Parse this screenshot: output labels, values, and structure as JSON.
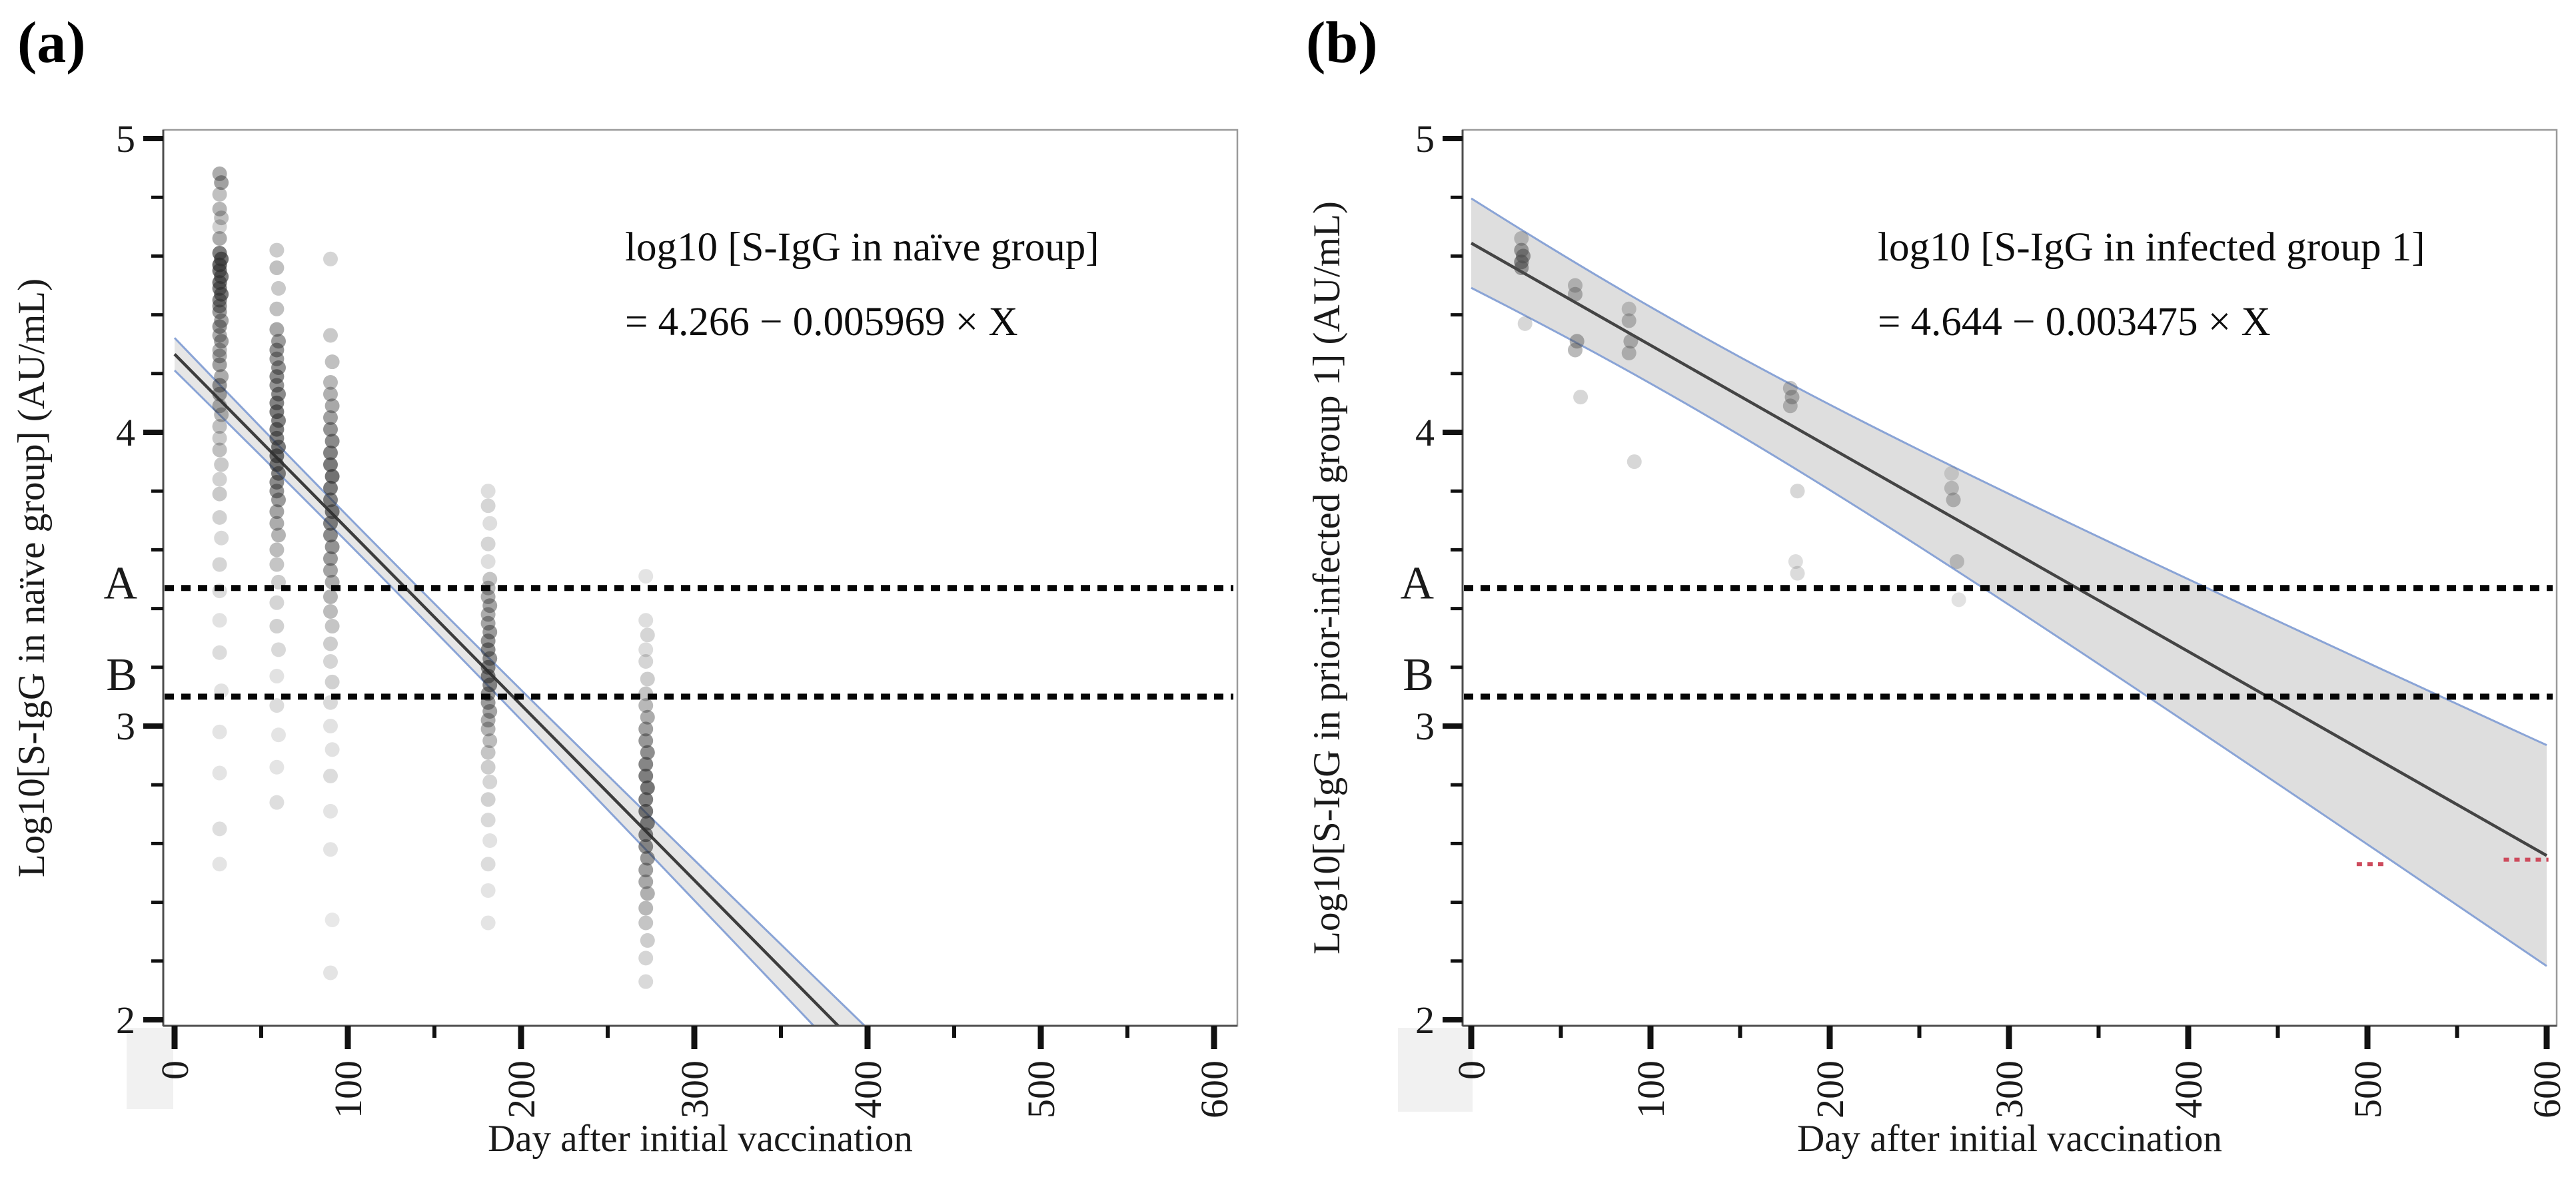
{
  "chart_data": [
    {
      "type": "scatter",
      "panel": "a",
      "panel_label": "(a)",
      "xlabel": "Day after initial vaccination",
      "ylabel": "Log10[S-IgG in naïve group] (AU/mL)",
      "xlim": [
        0,
        600
      ],
      "ylim": [
        2,
        5
      ],
      "x_ticks": [
        0,
        100,
        200,
        300,
        400,
        500,
        600
      ],
      "y_ticks": [
        2,
        3,
        4,
        5
      ],
      "minor_x_step": 50,
      "minor_y_step": 0.2,
      "grid": false,
      "equation": [
        "log10 [S-IgG in naïve group]",
        "= 4.266 − 0.005969 × X"
      ],
      "regression": {
        "intercept": 4.266,
        "slope": -0.005969,
        "x_start": 0,
        "x_end": 420
      },
      "ci_band": {
        "h0": 0.045,
        "k": 0.00028,
        "xm": 115,
        "x_start": 0,
        "x_end": 430
      },
      "thresholds": [
        {
          "label": "A",
          "y": 3.47
        },
        {
          "label": "B",
          "y": 3.1
        }
      ],
      "red_marks": [],
      "colors": {
        "point": "#2f2f2f",
        "line": "#3d3d3d",
        "band_fill": "#d2d2d2",
        "band_edge": "#8aa4d6",
        "threshold": "#050505",
        "red_mark": "#cd4a5c",
        "border": "#9a9a9a",
        "axis": "#4d4d4d",
        "tick": "#111111"
      },
      "band_opacity": 0.55,
      "points": [
        [
          26,
          4.88,
          0.4
        ],
        [
          27,
          4.85,
          0.45
        ],
        [
          26,
          4.81,
          0.3
        ],
        [
          26,
          4.76,
          0.35
        ],
        [
          27,
          4.73,
          0.3
        ],
        [
          26,
          4.7,
          0.22
        ],
        [
          26,
          4.66,
          0.4
        ],
        [
          26,
          4.61,
          0.62
        ],
        [
          27,
          4.59,
          0.68
        ],
        [
          26,
          4.57,
          0.72
        ],
        [
          26,
          4.55,
          0.66
        ],
        [
          27,
          4.53,
          0.62
        ],
        [
          26,
          4.51,
          0.66
        ],
        [
          26,
          4.49,
          0.6
        ],
        [
          27,
          4.47,
          0.64
        ],
        [
          26,
          4.45,
          0.56
        ],
        [
          26,
          4.43,
          0.52
        ],
        [
          26,
          4.41,
          0.48
        ],
        [
          27,
          4.38,
          0.44
        ],
        [
          26,
          4.36,
          0.5
        ],
        [
          26,
          4.33,
          0.4
        ],
        [
          27,
          4.31,
          0.46
        ],
        [
          26,
          4.28,
          0.36
        ],
        [
          26,
          4.26,
          0.42
        ],
        [
          26,
          4.23,
          0.46
        ],
        [
          27,
          4.19,
          0.4
        ],
        [
          26,
          4.16,
          0.5
        ],
        [
          26,
          4.13,
          0.44
        ],
        [
          26,
          4.09,
          0.38
        ],
        [
          27,
          4.06,
          0.34
        ],
        [
          26,
          4.02,
          0.3
        ],
        [
          26,
          3.98,
          0.26
        ],
        [
          26,
          3.94,
          0.3
        ],
        [
          27,
          3.89,
          0.26
        ],
        [
          26,
          3.84,
          0.22
        ],
        [
          26,
          3.79,
          0.26
        ],
        [
          26,
          3.71,
          0.22
        ],
        [
          27,
          3.64,
          0.18
        ],
        [
          26,
          3.55,
          0.2
        ],
        [
          26,
          3.46,
          0.17
        ],
        [
          26,
          3.36,
          0.14
        ],
        [
          26,
          3.25,
          0.17
        ],
        [
          27,
          3.12,
          0.14
        ],
        [
          26,
          2.98,
          0.13
        ],
        [
          26,
          2.84,
          0.13
        ],
        [
          26,
          2.65,
          0.16
        ],
        [
          26,
          2.53,
          0.13
        ],
        [
          59,
          4.62,
          0.25
        ],
        [
          59,
          4.56,
          0.3
        ],
        [
          60,
          4.49,
          0.26
        ],
        [
          59,
          4.42,
          0.3
        ],
        [
          59,
          4.35,
          0.42
        ],
        [
          60,
          4.31,
          0.48
        ],
        [
          59,
          4.28,
          0.52
        ],
        [
          59,
          4.25,
          0.48
        ],
        [
          60,
          4.22,
          0.52
        ],
        [
          59,
          4.19,
          0.56
        ],
        [
          59,
          4.16,
          0.52
        ],
        [
          60,
          4.13,
          0.56
        ],
        [
          59,
          4.1,
          0.6
        ],
        [
          59,
          4.07,
          0.64
        ],
        [
          60,
          4.04,
          0.6
        ],
        [
          59,
          4.01,
          0.64
        ],
        [
          59,
          3.98,
          0.6
        ],
        [
          60,
          3.95,
          0.64
        ],
        [
          59,
          3.92,
          0.68
        ],
        [
          59,
          3.89,
          0.64
        ],
        [
          60,
          3.86,
          0.6
        ],
        [
          59,
          3.83,
          0.56
        ],
        [
          59,
          3.8,
          0.52
        ],
        [
          60,
          3.77,
          0.48
        ],
        [
          59,
          3.73,
          0.44
        ],
        [
          59,
          3.69,
          0.4
        ],
        [
          60,
          3.65,
          0.36
        ],
        [
          59,
          3.6,
          0.32
        ],
        [
          59,
          3.55,
          0.28
        ],
        [
          60,
          3.49,
          0.24
        ],
        [
          59,
          3.42,
          0.2
        ],
        [
          59,
          3.34,
          0.22
        ],
        [
          60,
          3.26,
          0.18
        ],
        [
          59,
          3.17,
          0.14
        ],
        [
          59,
          3.07,
          0.17
        ],
        [
          60,
          2.97,
          0.13
        ],
        [
          59,
          2.86,
          0.13
        ],
        [
          59,
          2.74,
          0.16
        ],
        [
          90,
          4.59,
          0.2
        ],
        [
          90,
          4.33,
          0.26
        ],
        [
          91,
          4.24,
          0.3
        ],
        [
          90,
          4.17,
          0.34
        ],
        [
          90,
          4.13,
          0.38
        ],
        [
          91,
          4.09,
          0.42
        ],
        [
          90,
          4.05,
          0.46
        ],
        [
          90,
          4.01,
          0.52
        ],
        [
          91,
          3.97,
          0.56
        ],
        [
          90,
          3.93,
          0.6
        ],
        [
          90,
          3.89,
          0.64
        ],
        [
          91,
          3.85,
          0.68
        ],
        [
          90,
          3.81,
          0.64
        ],
        [
          90,
          3.77,
          0.6
        ],
        [
          91,
          3.73,
          0.64
        ],
        [
          90,
          3.69,
          0.6
        ],
        [
          90,
          3.65,
          0.56
        ],
        [
          91,
          3.61,
          0.52
        ],
        [
          90,
          3.57,
          0.48
        ],
        [
          90,
          3.53,
          0.44
        ],
        [
          91,
          3.49,
          0.4
        ],
        [
          90,
          3.44,
          0.36
        ],
        [
          90,
          3.39,
          0.32
        ],
        [
          91,
          3.34,
          0.28
        ],
        [
          90,
          3.28,
          0.24
        ],
        [
          90,
          3.22,
          0.2
        ],
        [
          91,
          3.15,
          0.22
        ],
        [
          90,
          3.08,
          0.18
        ],
        [
          90,
          3.0,
          0.14
        ],
        [
          91,
          2.92,
          0.14
        ],
        [
          90,
          2.83,
          0.17
        ],
        [
          90,
          2.71,
          0.13
        ],
        [
          90,
          2.58,
          0.13
        ],
        [
          91,
          2.34,
          0.11
        ],
        [
          90,
          2.16,
          0.13
        ],
        [
          181,
          3.8,
          0.16
        ],
        [
          181,
          3.75,
          0.2
        ],
        [
          182,
          3.69,
          0.16
        ],
        [
          181,
          3.62,
          0.2
        ],
        [
          181,
          3.56,
          0.16
        ],
        [
          182,
          3.5,
          0.28
        ],
        [
          181,
          3.47,
          0.34
        ],
        [
          181,
          3.44,
          0.4
        ],
        [
          182,
          3.41,
          0.44
        ],
        [
          181,
          3.38,
          0.4
        ],
        [
          181,
          3.35,
          0.44
        ],
        [
          182,
          3.32,
          0.48
        ],
        [
          181,
          3.29,
          0.52
        ],
        [
          181,
          3.26,
          0.56
        ],
        [
          182,
          3.23,
          0.52
        ],
        [
          181,
          3.2,
          0.56
        ],
        [
          181,
          3.17,
          0.6
        ],
        [
          182,
          3.14,
          0.56
        ],
        [
          181,
          3.11,
          0.52
        ],
        [
          181,
          3.08,
          0.48
        ],
        [
          182,
          3.05,
          0.44
        ],
        [
          181,
          3.02,
          0.4
        ],
        [
          181,
          2.99,
          0.36
        ],
        [
          182,
          2.95,
          0.32
        ],
        [
          181,
          2.91,
          0.28
        ],
        [
          181,
          2.86,
          0.24
        ],
        [
          182,
          2.81,
          0.2
        ],
        [
          181,
          2.75,
          0.22
        ],
        [
          181,
          2.68,
          0.18
        ],
        [
          182,
          2.61,
          0.14
        ],
        [
          181,
          2.53,
          0.17
        ],
        [
          181,
          2.44,
          0.13
        ],
        [
          181,
          2.33,
          0.13
        ],
        [
          272,
          3.51,
          0.13
        ],
        [
          272,
          3.36,
          0.16
        ],
        [
          273,
          3.31,
          0.2
        ],
        [
          272,
          3.26,
          0.17
        ],
        [
          272,
          3.22,
          0.2
        ],
        [
          273,
          3.16,
          0.24
        ],
        [
          272,
          3.11,
          0.28
        ],
        [
          272,
          3.07,
          0.34
        ],
        [
          273,
          3.03,
          0.4
        ],
        [
          272,
          2.99,
          0.46
        ],
        [
          272,
          2.95,
          0.5
        ],
        [
          273,
          2.91,
          0.54
        ],
        [
          272,
          2.87,
          0.58
        ],
        [
          272,
          2.83,
          0.62
        ],
        [
          273,
          2.79,
          0.66
        ],
        [
          272,
          2.75,
          0.62
        ],
        [
          272,
          2.71,
          0.66
        ],
        [
          273,
          2.67,
          0.62
        ],
        [
          272,
          2.63,
          0.58
        ],
        [
          272,
          2.59,
          0.54
        ],
        [
          273,
          2.55,
          0.5
        ],
        [
          272,
          2.51,
          0.46
        ],
        [
          272,
          2.47,
          0.42
        ],
        [
          273,
          2.43,
          0.38
        ],
        [
          272,
          2.38,
          0.34
        ],
        [
          272,
          2.33,
          0.28
        ],
        [
          273,
          2.27,
          0.24
        ],
        [
          272,
          2.21,
          0.2
        ],
        [
          272,
          2.13,
          0.18
        ]
      ]
    },
    {
      "type": "scatter",
      "panel": "b",
      "panel_label": "(b)",
      "xlabel": "Day after initial vaccination",
      "ylabel": "Log10[S-IgG in prior-infected group 1] (AU/mL)",
      "xlim": [
        0,
        600
      ],
      "ylim": [
        2,
        5
      ],
      "x_ticks": [
        0,
        100,
        200,
        300,
        400,
        500,
        600
      ],
      "y_ticks": [
        2,
        3,
        4,
        5
      ],
      "minor_x_step": 50,
      "minor_y_step": 0.2,
      "grid": false,
      "equation": [
        "log10 [S-IgG in infected group 1]",
        "= 4.644 − 0.003475 × X"
      ],
      "regression": {
        "intercept": 4.644,
        "slope": -0.003475,
        "x_start": 0,
        "x_end": 600
      },
      "ci_band": {
        "h0": 0.13,
        "k": 0.00072,
        "xm": 110,
        "x_start": 0,
        "x_end": 600
      },
      "thresholds": [
        {
          "label": "A",
          "y": 3.47
        },
        {
          "label": "B",
          "y": 3.1
        }
      ],
      "red_marks": [
        [
          494,
          2.53,
          510
        ],
        [
          576,
          2.545,
          601
        ]
      ],
      "colors": {
        "point": "#4a4a4a",
        "line": "#444444",
        "band_fill": "#dcdcdc",
        "band_edge": "#8aa4d6",
        "threshold": "#050505",
        "red_mark": "#cd4a5c",
        "border": "#9a9a9a",
        "axis": "#4d4d4d",
        "tick": "#111111"
      },
      "band_opacity": 0.95,
      "points": [
        [
          28,
          4.66,
          0.3
        ],
        [
          28,
          4.62,
          0.5
        ],
        [
          29,
          4.6,
          0.55
        ],
        [
          28,
          4.58,
          0.6
        ],
        [
          28,
          4.56,
          0.5
        ],
        [
          30,
          4.37,
          0.22
        ],
        [
          58,
          4.5,
          0.32
        ],
        [
          58,
          4.47,
          0.38
        ],
        [
          59,
          4.31,
          0.42
        ],
        [
          58,
          4.28,
          0.38
        ],
        [
          61,
          4.12,
          0.22
        ],
        [
          88,
          4.42,
          0.28
        ],
        [
          88,
          4.38,
          0.34
        ],
        [
          89,
          4.31,
          0.38
        ],
        [
          88,
          4.27,
          0.34
        ],
        [
          91,
          3.9,
          0.22
        ],
        [
          178,
          4.15,
          0.32
        ],
        [
          179,
          4.12,
          0.38
        ],
        [
          178,
          4.09,
          0.34
        ],
        [
          182,
          3.8,
          0.22
        ],
        [
          181,
          3.56,
          0.18
        ],
        [
          182,
          3.52,
          0.2
        ],
        [
          268,
          3.86,
          0.18
        ],
        [
          268,
          3.81,
          0.28
        ],
        [
          269,
          3.77,
          0.34
        ],
        [
          271,
          3.56,
          0.28
        ],
        [
          272,
          3.43,
          0.16
        ]
      ]
    }
  ]
}
